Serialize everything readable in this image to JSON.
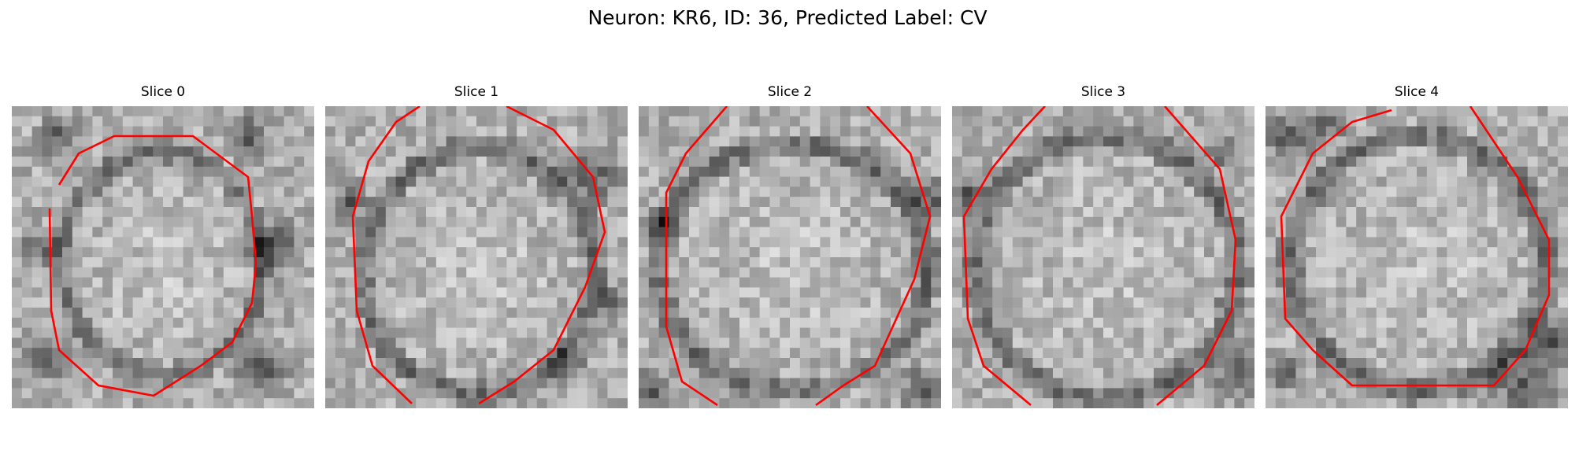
{
  "figure": {
    "title": "Neuron: KR6, ID: 36, Predicted Label: CV"
  },
  "panels": [
    {
      "title": "Slice 0"
    },
    {
      "title": "Slice 1"
    },
    {
      "title": "Slice 2"
    },
    {
      "title": "Slice 3"
    },
    {
      "title": "Slice 4"
    }
  ],
  "colors": {
    "contour": "#ff0000",
    "background": "#ffffff"
  },
  "image_style": "grayscale pixelated microscopy patch with red outline"
}
